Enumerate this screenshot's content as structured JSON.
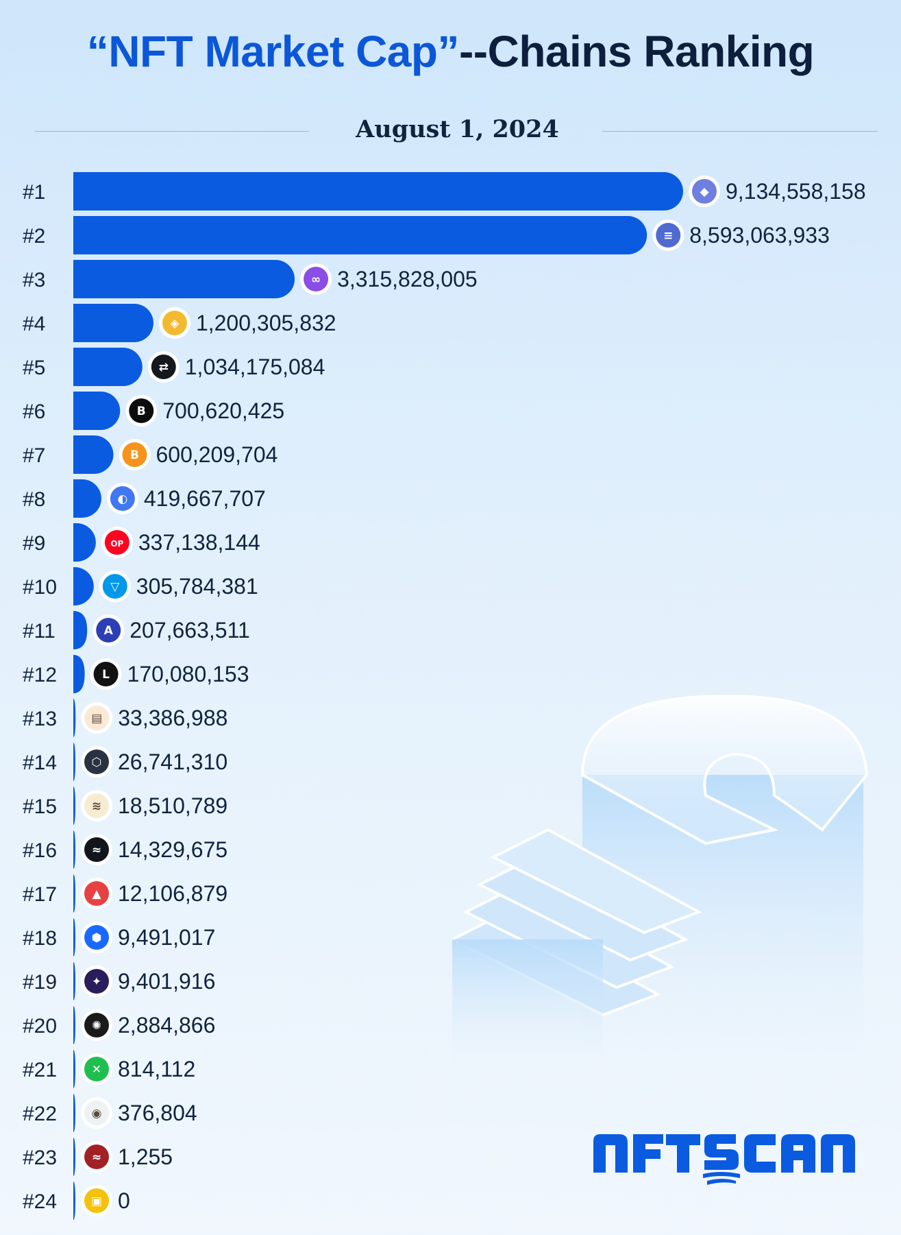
{
  "title": {
    "highlight": "“NFT Market Cap”",
    "rest": "--Chains Ranking"
  },
  "date": "August 1, 2024",
  "brand": "NFTSCAN",
  "colors": {
    "bar": "#0a5be0",
    "title_blue": "#0b57d8",
    "text_dark": "#10233f"
  },
  "chart_data": {
    "type": "bar",
    "orientation": "horizontal",
    "categories": [
      "#1",
      "#2",
      "#3",
      "#4",
      "#5",
      "#6",
      "#7",
      "#8",
      "#9",
      "#10",
      "#11",
      "#12",
      "#13",
      "#14",
      "#15",
      "#16",
      "#17",
      "#18",
      "#19",
      "#20",
      "#21",
      "#22",
      "#23",
      "#24"
    ],
    "values": [
      9134558158,
      8593063933,
      3315828005,
      1200305832,
      1034175084,
      700620425,
      600209704,
      419667707,
      337138144,
      305784381,
      207663511,
      170080153,
      33386988,
      26741310,
      18510789,
      14329675,
      12106879,
      9491017,
      9401916,
      2884866,
      814112,
      376804,
      1255,
      0
    ],
    "labels": [
      "9,134,558,158",
      "8,593,063,933",
      "3,315,828,005",
      "1,200,305,832",
      "1,034,175,084",
      "700,620,425",
      "600,209,704",
      "419,667,707",
      "337,138,144",
      "305,784,381",
      "207,663,511",
      "170,080,153",
      "33,386,988",
      "26,741,310",
      "18,510,789",
      "14,329,675",
      "12,106,879",
      "9,491,017",
      "9,401,916",
      "2,884,866",
      "814,112",
      "376,804",
      "1,255",
      "0"
    ],
    "icons": [
      "ethereum-icon",
      "solana-icon",
      "polygon-icon",
      "bnb-chain-icon",
      "immutable-icon",
      "blast-icon",
      "bitcoin-icon",
      "base-icon",
      "optimism-icon",
      "ton-icon",
      "arbitrum-icon",
      "linea-icon",
      "scroll-icon",
      "cronos-icon",
      "mantle-icon",
      "sei-icon",
      "avalanche-icon",
      "fantom-icon",
      "starknet-icon",
      "zksync-icon",
      "x-layer-icon",
      "zkfair-icon",
      "viction-icon",
      "gnosis-icon"
    ],
    "icon_colors": [
      "#6e7fe0",
      "#4f6ad0",
      "#8a4de6",
      "#f3ba2f",
      "#17181d",
      "#0d0d0d",
      "#f7931a",
      "#3f78f0",
      "#ff0420",
      "#0098ea",
      "#2d3fb5",
      "#121212",
      "#fbe9d6",
      "#2a3140",
      "#f5ecd2",
      "#13151d",
      "#e84142",
      "#1969ff",
      "#2a1d5c",
      "#1a1a1a",
      "#1fbf4f",
      "#eef2f4",
      "#a32125",
      "#f4c20d"
    ],
    "xlim": [
      0,
      9134558158
    ]
  }
}
